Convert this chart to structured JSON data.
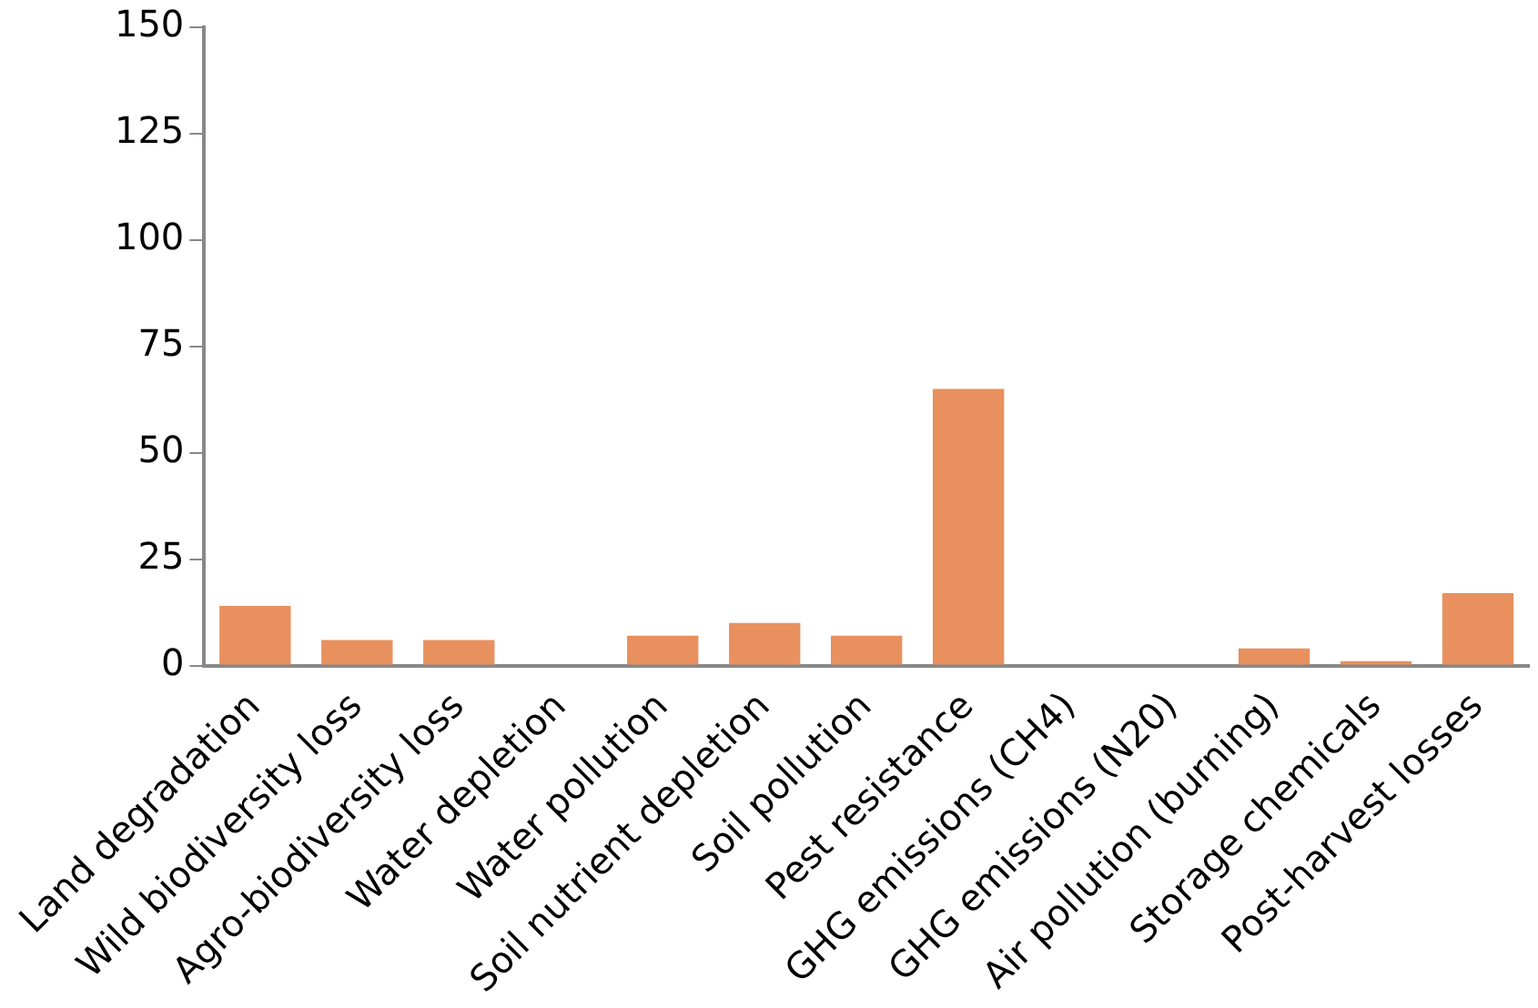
{
  "chart_data": {
    "type": "bar",
    "categories": [
      "Land degradation",
      "Wild biodiversity loss",
      "Agro-biodiversity loss",
      "Water depletion",
      "Water pollution",
      "Soil nutrient depletion",
      "Soil pollution",
      "Pest resistance",
      "GHG emissions (CH4)",
      "GHG emissions (N20)",
      "Air pollution (burning)",
      "Storage chemicals",
      "Post-harvest losses"
    ],
    "values": [
      14,
      6,
      6,
      0,
      7,
      10,
      7,
      65,
      0,
      0,
      4,
      1,
      17
    ],
    "color": "#e8915f",
    "ylim": [
      0,
      150
    ],
    "yticks": [
      0,
      25,
      50,
      75,
      100,
      125,
      150
    ],
    "grid": false
  }
}
